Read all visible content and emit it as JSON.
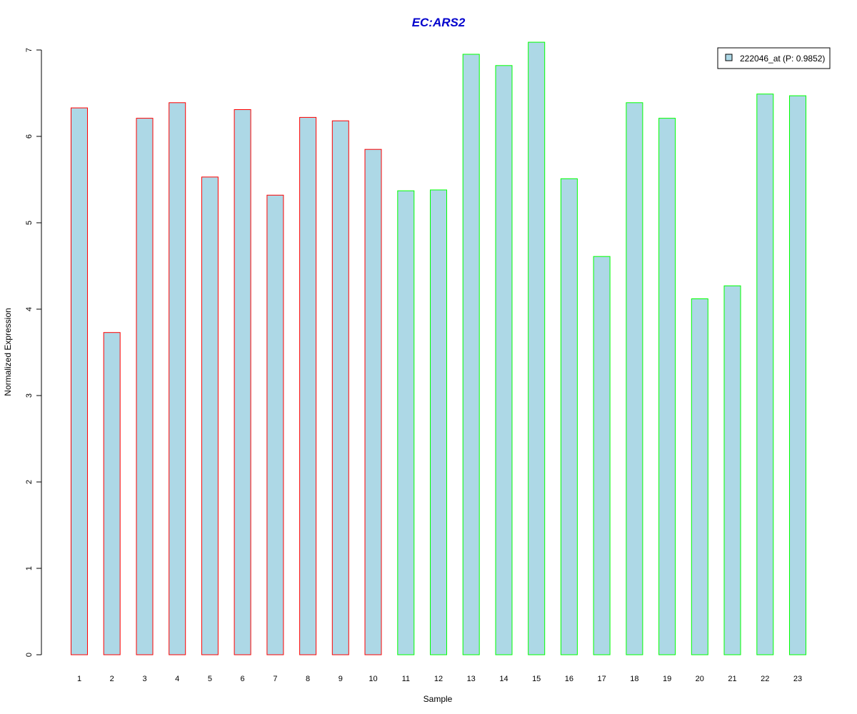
{
  "chart_data": {
    "type": "bar",
    "title": "EC:ARS2",
    "xlabel": "Sample",
    "ylabel": "Normalized Expression",
    "categories": [
      "1",
      "2",
      "3",
      "4",
      "5",
      "6",
      "7",
      "8",
      "9",
      "10",
      "11",
      "12",
      "13",
      "14",
      "15",
      "16",
      "17",
      "18",
      "19",
      "20",
      "21",
      "22",
      "23"
    ],
    "series": [
      {
        "name": "222046_at (P: 0.9852)",
        "values": [
          6.33,
          3.73,
          6.21,
          6.39,
          5.53,
          6.31,
          5.32,
          6.22,
          6.18,
          5.85,
          5.37,
          5.38,
          6.95,
          6.82,
          7.09,
          5.51,
          4.61,
          6.39,
          6.21,
          4.12,
          4.27,
          6.49,
          6.47
        ]
      }
    ],
    "ylim": [
      0,
      7
    ],
    "yticks": [
      "0",
      "1",
      "2",
      "3",
      "4",
      "5",
      "6",
      "7"
    ],
    "grid": false,
    "legend_position": "top-right",
    "colors": {
      "bar_fill": "#add8e6",
      "title": "#0000cd",
      "group_borders": [
        "#ff0000",
        "#00ff00"
      ]
    },
    "border_color_per_bar": [
      "#ff0000",
      "#ff0000",
      "#ff0000",
      "#ff0000",
      "#ff0000",
      "#ff0000",
      "#ff0000",
      "#ff0000",
      "#ff0000",
      "#ff0000",
      "#00ff00",
      "#00ff00",
      "#00ff00",
      "#00ff00",
      "#00ff00",
      "#00ff00",
      "#00ff00",
      "#00ff00",
      "#00ff00",
      "#00ff00",
      "#00ff00",
      "#00ff00",
      "#00ff00"
    ]
  }
}
